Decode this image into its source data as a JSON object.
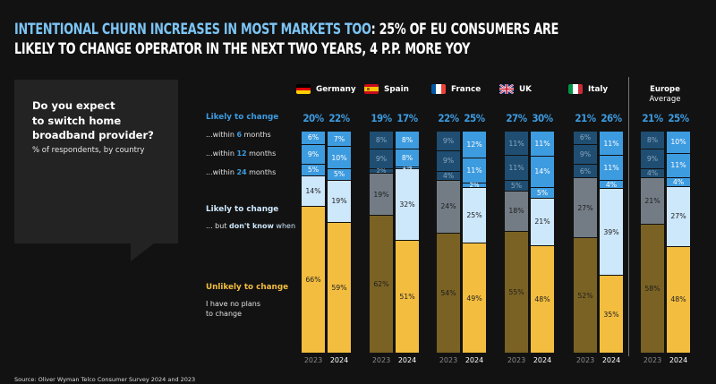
{
  "header": {
    "title_highlight": "INTENTIONAL CHURN INCREASES IN MOST MARKETS TOO",
    "title_rest_line1": ": 25% OF EU CONSUMERS ARE",
    "title_line2": "LIKELY TO CHANGE OPERATOR IN THE NEXT TWO YEARS, 4 P.P. MORE YOY"
  },
  "question": {
    "line1": "Do you expect",
    "line2": "to switch home",
    "line3": "broadband provider?",
    "subtitle": "% of respondents, by country"
  },
  "legend": {
    "likely_head": "Likely to change",
    "within_prefix": "...within ",
    "months_suffix": " months",
    "m6": "6",
    "m12": "12",
    "m24": "24",
    "dontknow_head": "Likely to change",
    "dontknow_prefix": "... but ",
    "dontknow_bold": "don't know",
    "dontknow_suffix": " when",
    "unlikely_head": "Unlikely to change",
    "unlikely_l1": "I have no plans",
    "unlikely_l2": "to change"
  },
  "source": "Source: Oliver Wyman Telco Consumer Survey 2024 and 2023",
  "colors": {
    "within6": "#3d9be0",
    "within12": "#3d9be0",
    "within24": "#3d9be0",
    "dont_know": "#cde7fb",
    "unlikely": "#f3bd3f",
    "within_dim": "#1f4e72",
    "dont_know_dim": "#737c85",
    "unlikely_dim": "#7a6224",
    "title_highlight": "#7cc4f4"
  },
  "chart_data": {
    "type": "bar",
    "stacked": true,
    "title": "Do you expect to switch home broadband provider?",
    "subtitle": "% of respondents, by country",
    "ylabel": "% of respondents",
    "ylim": [
      0,
      100
    ],
    "years": [
      "2023",
      "2024"
    ],
    "segments": [
      "Unlikely to change",
      "Likely to change - don't know when",
      "within 24 months",
      "within 12 months",
      "within 6 months"
    ],
    "groups": [
      {
        "name": "Germany",
        "flag": "de",
        "dim2023": false,
        "bars": [
          {
            "year": "2023",
            "total_likely": "20%",
            "values": [
              66,
              14,
              5,
              9,
              6
            ]
          },
          {
            "year": "2024",
            "total_likely": "22%",
            "values": [
              59,
              19,
              5,
              10,
              7
            ]
          }
        ]
      },
      {
        "name": "Spain",
        "flag": "es",
        "dim2023": true,
        "bars": [
          {
            "year": "2023",
            "total_likely": "19%",
            "values": [
              62,
              19,
              2,
              9,
              8
            ]
          },
          {
            "year": "2024",
            "total_likely": "17%",
            "values": [
              51,
              32,
              1,
              8,
              8
            ]
          }
        ]
      },
      {
        "name": "France",
        "flag": "fr",
        "dim2023": true,
        "bars": [
          {
            "year": "2023",
            "total_likely": "22%",
            "values": [
              54,
              24,
              4,
              9,
              9
            ]
          },
          {
            "year": "2024",
            "total_likely": "25%",
            "values": [
              49,
              25,
              2,
              11,
              12
            ]
          }
        ]
      },
      {
        "name": "UK",
        "flag": "uk",
        "dim2023": true,
        "bars": [
          {
            "year": "2023",
            "total_likely": "27%",
            "values": [
              55,
              18,
              5,
              11,
              11
            ]
          },
          {
            "year": "2024",
            "total_likely": "30%",
            "values": [
              48,
              21,
              5,
              14,
              11
            ]
          }
        ]
      },
      {
        "name": "Italy",
        "flag": "it",
        "dim2023": true,
        "bars": [
          {
            "year": "2023",
            "total_likely": "21%",
            "values": [
              52,
              27,
              6,
              9,
              6
            ]
          },
          {
            "year": "2024",
            "total_likely": "26%",
            "values": [
              35,
              39,
              4,
              11,
              11
            ]
          }
        ]
      },
      {
        "name": "Europe Average",
        "name_l1": "Europe",
        "name_l2": "Average",
        "flag": "",
        "dim2023": true,
        "bars": [
          {
            "year": "2023",
            "total_likely": "21%",
            "values": [
              58,
              21,
              4,
              9,
              8
            ]
          },
          {
            "year": "2024",
            "total_likely": "25%",
            "values": [
              48,
              27,
              4,
              11,
              10
            ]
          }
        ]
      }
    ]
  }
}
